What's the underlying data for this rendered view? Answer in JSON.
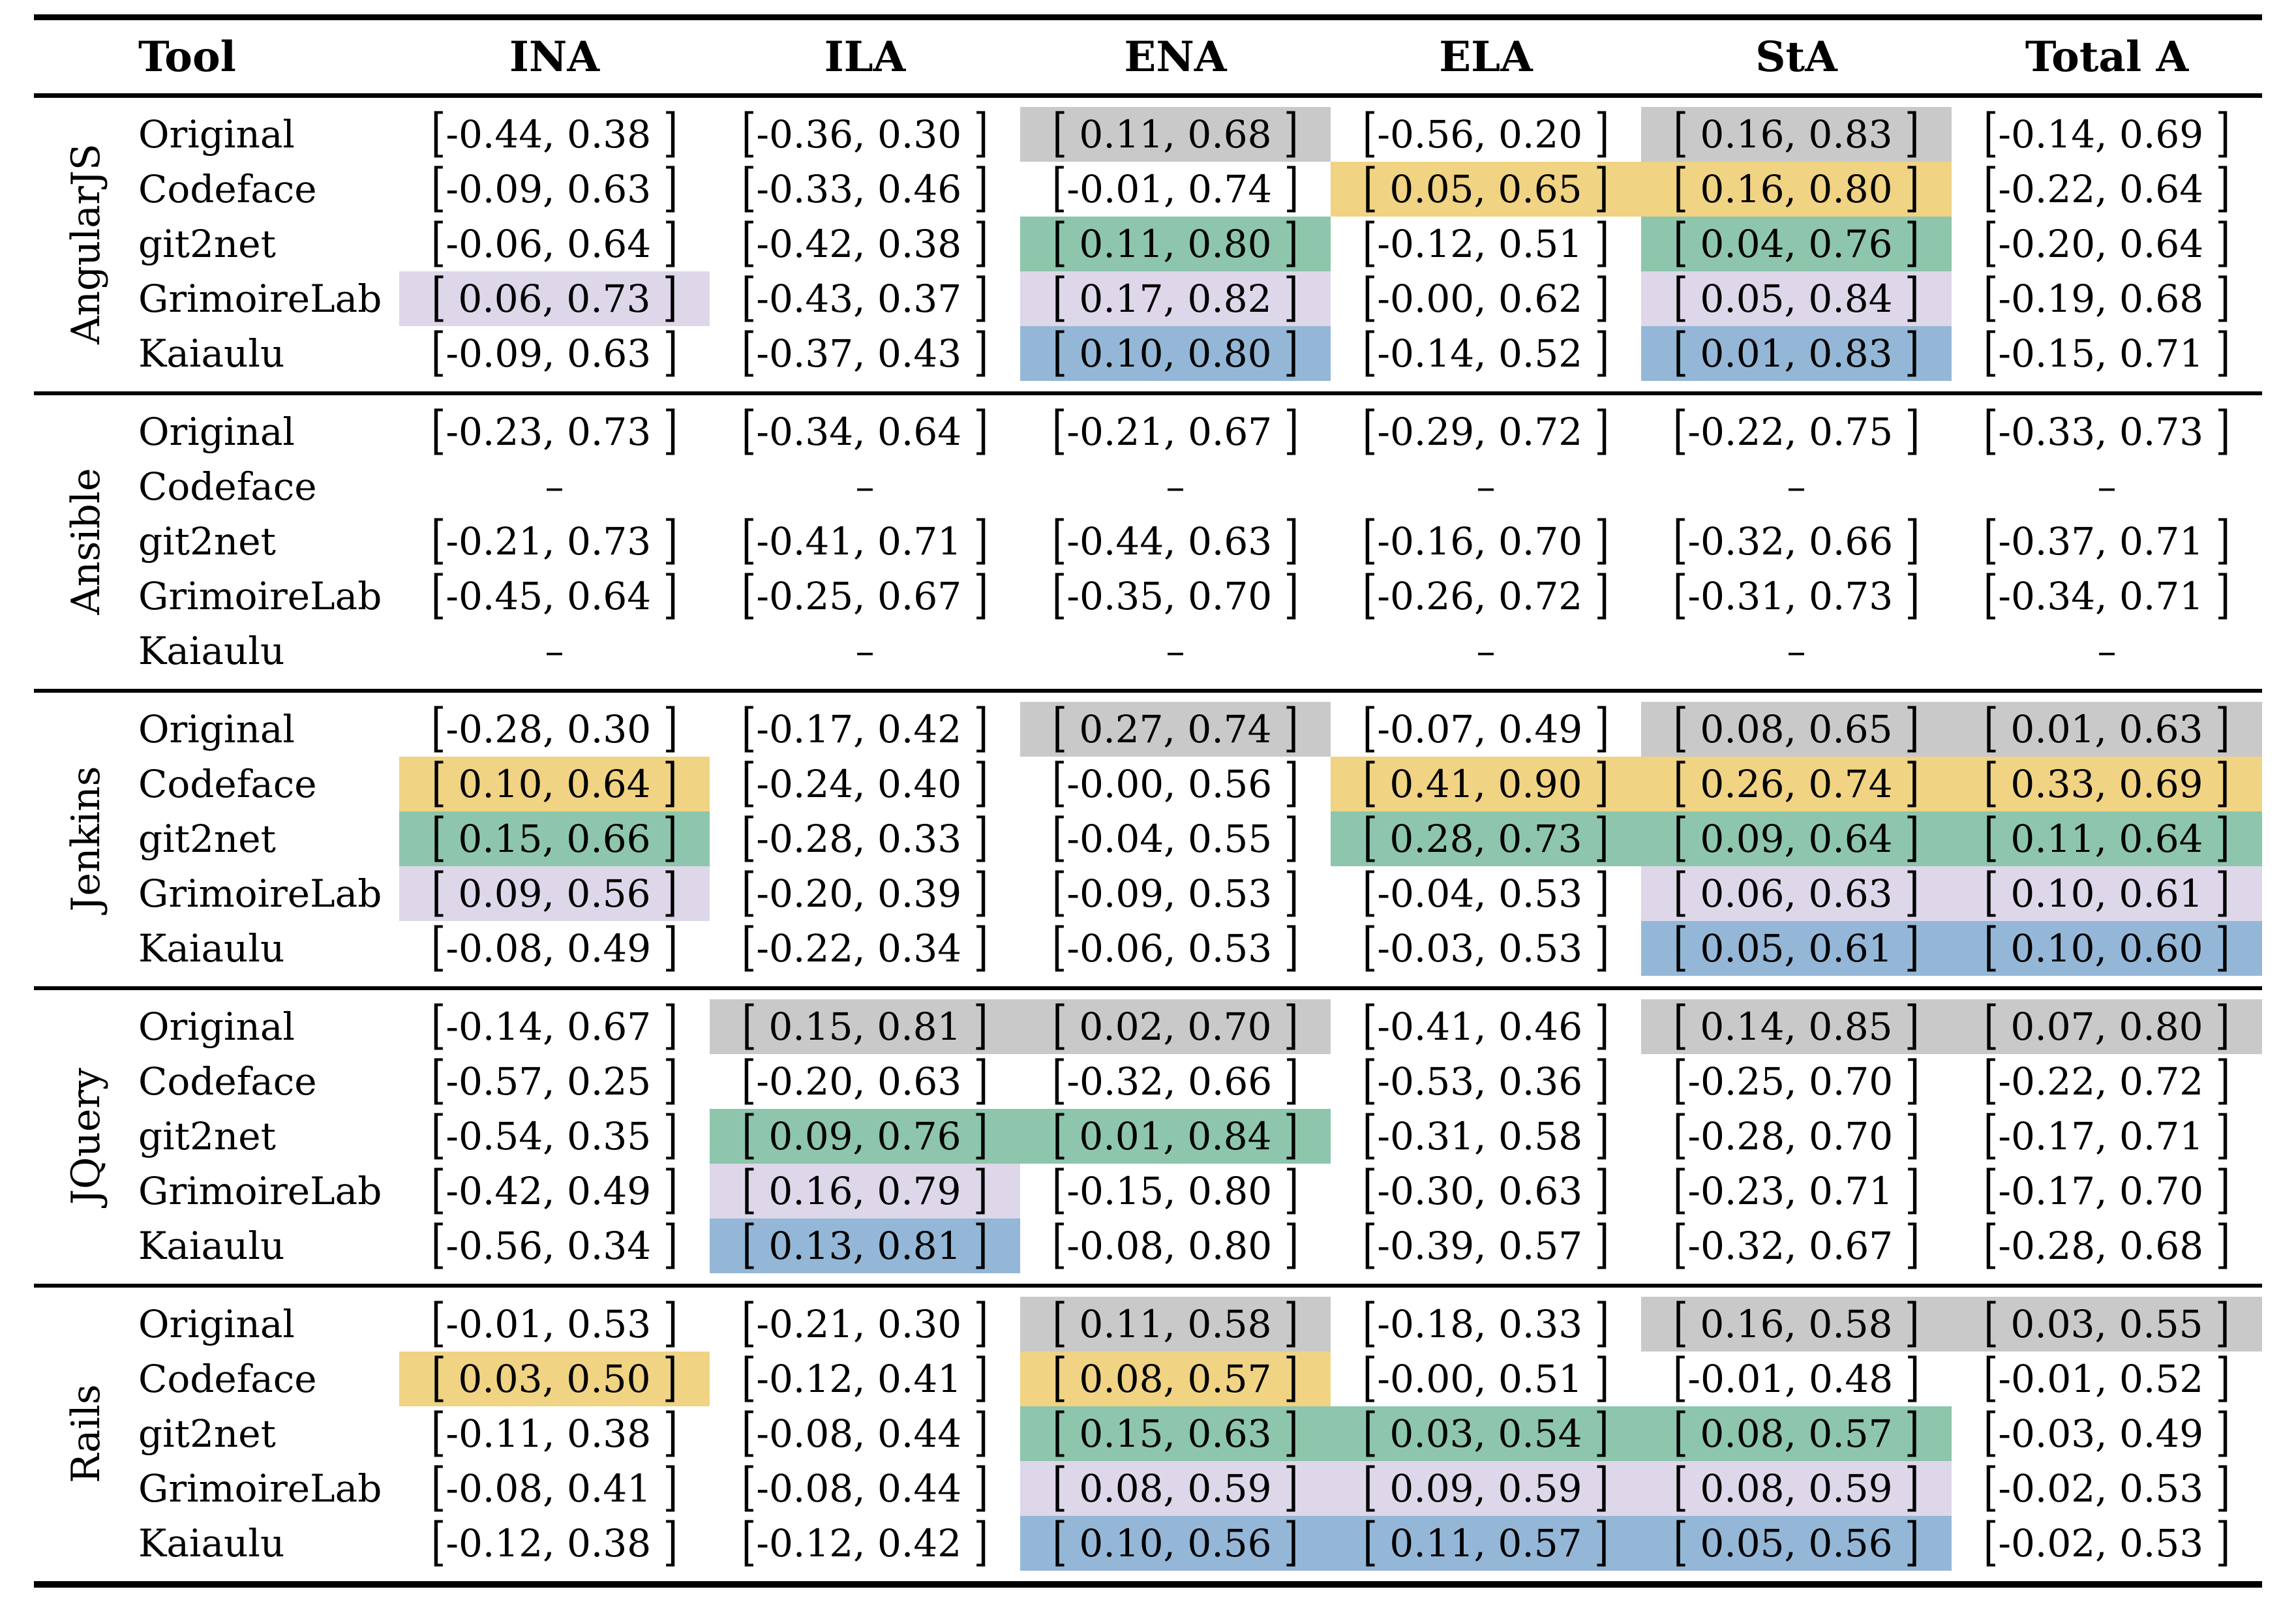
{
  "table": {
    "columns": [
      "Tool",
      "INA",
      "ILA",
      "ENA",
      "ELA",
      "StA",
      "Total A"
    ],
    "highlight_colors": {
      "gray": "#c9c9c9",
      "yellow": "#f0d383",
      "green": "#8dc6ac",
      "lavender": "#ded7e9",
      "blue": "#94b7d7"
    },
    "missing_marker": "–",
    "groups": [
      {
        "project": "AngularJS",
        "rows": [
          {
            "tool": "Original",
            "cells": [
              {
                "t": "[-0.44, 0.38 ]",
                "h": null
              },
              {
                "t": "[-0.36, 0.30 ]",
                "h": null
              },
              {
                "t": "[ 0.11, 0.68 ]",
                "h": "gray"
              },
              {
                "t": "[-0.56, 0.20 ]",
                "h": null
              },
              {
                "t": "[ 0.16, 0.83 ]",
                "h": "gray"
              },
              {
                "t": "[-0.14, 0.69 ]",
                "h": null
              }
            ]
          },
          {
            "tool": "Codeface",
            "cells": [
              {
                "t": "[-0.09, 0.63 ]",
                "h": null
              },
              {
                "t": "[-0.33, 0.46 ]",
                "h": null
              },
              {
                "t": "[-0.01, 0.74 ]",
                "h": null
              },
              {
                "t": "[ 0.05, 0.65 ]",
                "h": "yellow"
              },
              {
                "t": "[ 0.16, 0.80 ]",
                "h": "yellow"
              },
              {
                "t": "[-0.22, 0.64 ]",
                "h": null
              }
            ]
          },
          {
            "tool": "git2net",
            "cells": [
              {
                "t": "[-0.06, 0.64 ]",
                "h": null
              },
              {
                "t": "[-0.42, 0.38 ]",
                "h": null
              },
              {
                "t": "[ 0.11, 0.80 ]",
                "h": "green"
              },
              {
                "t": "[-0.12, 0.51 ]",
                "h": null
              },
              {
                "t": "[ 0.04, 0.76 ]",
                "h": "green"
              },
              {
                "t": "[-0.20, 0.64 ]",
                "h": null
              }
            ]
          },
          {
            "tool": "GrimoireLab",
            "cells": [
              {
                "t": "[ 0.06, 0.73 ]",
                "h": "lavender"
              },
              {
                "t": "[-0.43, 0.37 ]",
                "h": null
              },
              {
                "t": "[ 0.17, 0.82 ]",
                "h": "lavender"
              },
              {
                "t": "[-0.00, 0.62 ]",
                "h": null
              },
              {
                "t": "[ 0.05, 0.84 ]",
                "h": "lavender"
              },
              {
                "t": "[-0.19, 0.68 ]",
                "h": null
              }
            ]
          },
          {
            "tool": "Kaiaulu",
            "cells": [
              {
                "t": "[-0.09, 0.63 ]",
                "h": null
              },
              {
                "t": "[-0.37, 0.43 ]",
                "h": null
              },
              {
                "t": "[ 0.10, 0.80 ]",
                "h": "blue"
              },
              {
                "t": "[-0.14, 0.52 ]",
                "h": null
              },
              {
                "t": "[ 0.01, 0.83 ]",
                "h": "blue"
              },
              {
                "t": "[-0.15, 0.71 ]",
                "h": null
              }
            ]
          }
        ]
      },
      {
        "project": "Ansible",
        "rows": [
          {
            "tool": "Original",
            "cells": [
              {
                "t": "[-0.23, 0.73 ]",
                "h": null
              },
              {
                "t": "[-0.34, 0.64 ]",
                "h": null
              },
              {
                "t": "[-0.21, 0.67 ]",
                "h": null
              },
              {
                "t": "[-0.29, 0.72 ]",
                "h": null
              },
              {
                "t": "[-0.22, 0.75 ]",
                "h": null
              },
              {
                "t": "[-0.33, 0.73 ]",
                "h": null
              }
            ]
          },
          {
            "tool": "Codeface",
            "cells": [
              {
                "t": "–",
                "h": null
              },
              {
                "t": "–",
                "h": null
              },
              {
                "t": "–",
                "h": null
              },
              {
                "t": "–",
                "h": null
              },
              {
                "t": "–",
                "h": null
              },
              {
                "t": "–",
                "h": null
              }
            ]
          },
          {
            "tool": "git2net",
            "cells": [
              {
                "t": "[-0.21, 0.73 ]",
                "h": null
              },
              {
                "t": "[-0.41, 0.71 ]",
                "h": null
              },
              {
                "t": "[-0.44, 0.63 ]",
                "h": null
              },
              {
                "t": "[-0.16, 0.70 ]",
                "h": null
              },
              {
                "t": "[-0.32, 0.66 ]",
                "h": null
              },
              {
                "t": "[-0.37, 0.71 ]",
                "h": null
              }
            ]
          },
          {
            "tool": "GrimoireLab",
            "cells": [
              {
                "t": "[-0.45, 0.64 ]",
                "h": null
              },
              {
                "t": "[-0.25, 0.67 ]",
                "h": null
              },
              {
                "t": "[-0.35, 0.70 ]",
                "h": null
              },
              {
                "t": "[-0.26, 0.72 ]",
                "h": null
              },
              {
                "t": "[-0.31, 0.73 ]",
                "h": null
              },
              {
                "t": "[-0.34, 0.71 ]",
                "h": null
              }
            ]
          },
          {
            "tool": "Kaiaulu",
            "cells": [
              {
                "t": "–",
                "h": null
              },
              {
                "t": "–",
                "h": null
              },
              {
                "t": "–",
                "h": null
              },
              {
                "t": "–",
                "h": null
              },
              {
                "t": "–",
                "h": null
              },
              {
                "t": "–",
                "h": null
              }
            ]
          }
        ]
      },
      {
        "project": "Jenkins",
        "rows": [
          {
            "tool": "Original",
            "cells": [
              {
                "t": "[-0.28, 0.30 ]",
                "h": null
              },
              {
                "t": "[-0.17, 0.42 ]",
                "h": null
              },
              {
                "t": "[ 0.27, 0.74 ]",
                "h": "gray"
              },
              {
                "t": "[-0.07, 0.49 ]",
                "h": null
              },
              {
                "t": "[ 0.08, 0.65 ]",
                "h": "gray"
              },
              {
                "t": "[ 0.01, 0.63 ]",
                "h": "gray"
              }
            ]
          },
          {
            "tool": "Codeface",
            "cells": [
              {
                "t": "[ 0.10, 0.64 ]",
                "h": "yellow"
              },
              {
                "t": "[-0.24, 0.40 ]",
                "h": null
              },
              {
                "t": "[-0.00, 0.56 ]",
                "h": null
              },
              {
                "t": "[ 0.41, 0.90 ]",
                "h": "yellow"
              },
              {
                "t": "[ 0.26, 0.74 ]",
                "h": "yellow"
              },
              {
                "t": "[ 0.33, 0.69 ]",
                "h": "yellow"
              }
            ]
          },
          {
            "tool": "git2net",
            "cells": [
              {
                "t": "[ 0.15, 0.66 ]",
                "h": "green"
              },
              {
                "t": "[-0.28, 0.33 ]",
                "h": null
              },
              {
                "t": "[-0.04, 0.55 ]",
                "h": null
              },
              {
                "t": "[ 0.28, 0.73 ]",
                "h": "green"
              },
              {
                "t": "[ 0.09, 0.64 ]",
                "h": "green"
              },
              {
                "t": "[ 0.11, 0.64 ]",
                "h": "green"
              }
            ]
          },
          {
            "tool": "GrimoireLab",
            "cells": [
              {
                "t": "[ 0.09, 0.56 ]",
                "h": "lavender"
              },
              {
                "t": "[-0.20, 0.39 ]",
                "h": null
              },
              {
                "t": "[-0.09, 0.53 ]",
                "h": null
              },
              {
                "t": "[-0.04, 0.53 ]",
                "h": null
              },
              {
                "t": "[ 0.06, 0.63 ]",
                "h": "lavender"
              },
              {
                "t": "[ 0.10, 0.61 ]",
                "h": "lavender"
              }
            ]
          },
          {
            "tool": "Kaiaulu",
            "cells": [
              {
                "t": "[-0.08, 0.49 ]",
                "h": null
              },
              {
                "t": "[-0.22, 0.34 ]",
                "h": null
              },
              {
                "t": "[-0.06, 0.53 ]",
                "h": null
              },
              {
                "t": "[-0.03, 0.53 ]",
                "h": null
              },
              {
                "t": "[ 0.05, 0.61 ]",
                "h": "blue"
              },
              {
                "t": "[ 0.10, 0.60 ]",
                "h": "blue"
              }
            ]
          }
        ]
      },
      {
        "project": "JQuery",
        "rows": [
          {
            "tool": "Original",
            "cells": [
              {
                "t": "[-0.14, 0.67 ]",
                "h": null
              },
              {
                "t": "[ 0.15, 0.81 ]",
                "h": "gray"
              },
              {
                "t": "[ 0.02, 0.70 ]",
                "h": "gray"
              },
              {
                "t": "[-0.41, 0.46 ]",
                "h": null
              },
              {
                "t": "[ 0.14, 0.85 ]",
                "h": "gray"
              },
              {
                "t": "[ 0.07, 0.80 ]",
                "h": "gray"
              }
            ]
          },
          {
            "tool": "Codeface",
            "cells": [
              {
                "t": "[-0.57, 0.25 ]",
                "h": null
              },
              {
                "t": "[-0.20, 0.63 ]",
                "h": null
              },
              {
                "t": "[-0.32, 0.66 ]",
                "h": null
              },
              {
                "t": "[-0.53, 0.36 ]",
                "h": null
              },
              {
                "t": "[-0.25, 0.70 ]",
                "h": null
              },
              {
                "t": "[-0.22, 0.72 ]",
                "h": null
              }
            ]
          },
          {
            "tool": "git2net",
            "cells": [
              {
                "t": "[-0.54, 0.35 ]",
                "h": null
              },
              {
                "t": "[ 0.09, 0.76 ]",
                "h": "green"
              },
              {
                "t": "[ 0.01, 0.84 ]",
                "h": "green"
              },
              {
                "t": "[-0.31, 0.58 ]",
                "h": null
              },
              {
                "t": "[-0.28, 0.70 ]",
                "h": null
              },
              {
                "t": "[-0.17, 0.71 ]",
                "h": null
              }
            ]
          },
          {
            "tool": "GrimoireLab",
            "cells": [
              {
                "t": "[-0.42, 0.49 ]",
                "h": null
              },
              {
                "t": "[ 0.16, 0.79 ]",
                "h": "lavender"
              },
              {
                "t": "[-0.15, 0.80 ]",
                "h": null
              },
              {
                "t": "[-0.30, 0.63 ]",
                "h": null
              },
              {
                "t": "[-0.23, 0.71 ]",
                "h": null
              },
              {
                "t": "[-0.17, 0.70 ]",
                "h": null
              }
            ]
          },
          {
            "tool": "Kaiaulu",
            "cells": [
              {
                "t": "[-0.56, 0.34 ]",
                "h": null
              },
              {
                "t": "[ 0.13, 0.81 ]",
                "h": "blue"
              },
              {
                "t": "[-0.08, 0.80 ]",
                "h": null
              },
              {
                "t": "[-0.39, 0.57 ]",
                "h": null
              },
              {
                "t": "[-0.32, 0.67 ]",
                "h": null
              },
              {
                "t": "[-0.28, 0.68 ]",
                "h": null
              }
            ]
          }
        ]
      },
      {
        "project": "Rails",
        "rows": [
          {
            "tool": "Original",
            "cells": [
              {
                "t": "[-0.01, 0.53 ]",
                "h": null
              },
              {
                "t": "[-0.21, 0.30 ]",
                "h": null
              },
              {
                "t": "[ 0.11, 0.58 ]",
                "h": "gray"
              },
              {
                "t": "[-0.18, 0.33 ]",
                "h": null
              },
              {
                "t": "[ 0.16, 0.58 ]",
                "h": "gray"
              },
              {
                "t": "[ 0.03, 0.55 ]",
                "h": "gray"
              }
            ]
          },
          {
            "tool": "Codeface",
            "cells": [
              {
                "t": "[ 0.03, 0.50 ]",
                "h": "yellow"
              },
              {
                "t": "[-0.12, 0.41 ]",
                "h": null
              },
              {
                "t": "[ 0.08, 0.57 ]",
                "h": "yellow"
              },
              {
                "t": "[-0.00, 0.51 ]",
                "h": null
              },
              {
                "t": "[-0.01, 0.48 ]",
                "h": null
              },
              {
                "t": "[-0.01, 0.52 ]",
                "h": null
              }
            ]
          },
          {
            "tool": "git2net",
            "cells": [
              {
                "t": "[-0.11, 0.38 ]",
                "h": null
              },
              {
                "t": "[-0.08, 0.44 ]",
                "h": null
              },
              {
                "t": "[ 0.15, 0.63 ]",
                "h": "green"
              },
              {
                "t": "[ 0.03, 0.54 ]",
                "h": "green"
              },
              {
                "t": "[ 0.08, 0.57 ]",
                "h": "green"
              },
              {
                "t": "[-0.03, 0.49 ]",
                "h": null
              }
            ]
          },
          {
            "tool": "GrimoireLab",
            "cells": [
              {
                "t": "[-0.08, 0.41 ]",
                "h": null
              },
              {
                "t": "[-0.08, 0.44 ]",
                "h": null
              },
              {
                "t": "[ 0.08, 0.59 ]",
                "h": "lavender"
              },
              {
                "t": "[ 0.09, 0.59 ]",
                "h": "lavender"
              },
              {
                "t": "[ 0.08, 0.59 ]",
                "h": "lavender"
              },
              {
                "t": "[-0.02, 0.53 ]",
                "h": null
              }
            ]
          },
          {
            "tool": "Kaiaulu",
            "cells": [
              {
                "t": "[-0.12, 0.38 ]",
                "h": null
              },
              {
                "t": "[-0.12, 0.42 ]",
                "h": null
              },
              {
                "t": "[ 0.10, 0.56 ]",
                "h": "blue"
              },
              {
                "t": "[ 0.11, 0.57 ]",
                "h": "blue"
              },
              {
                "t": "[ 0.05, 0.56 ]",
                "h": "blue"
              },
              {
                "t": "[-0.02, 0.53 ]",
                "h": null
              }
            ]
          }
        ]
      }
    ]
  }
}
